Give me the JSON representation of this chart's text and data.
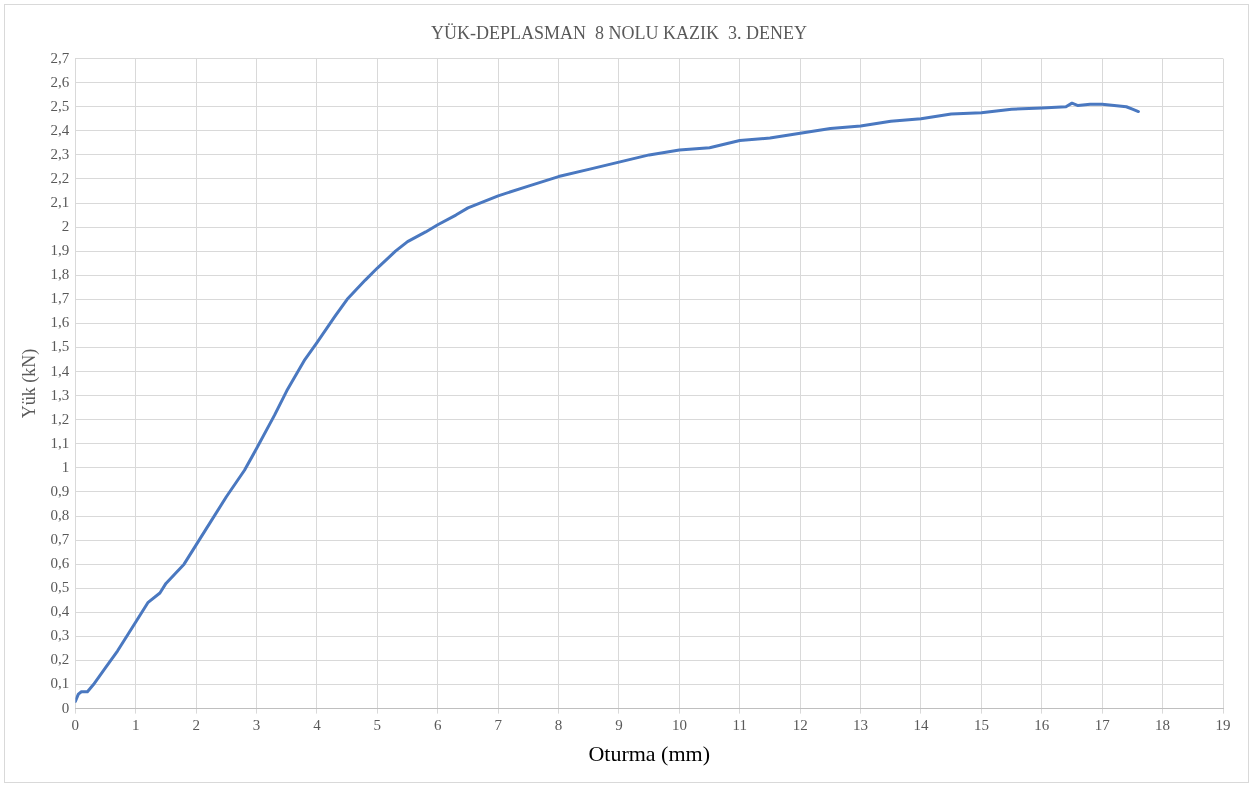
{
  "chart_data": {
    "type": "line",
    "title": "YÜK-DEPLASMAN  8 NOLU KAZIK  3. DENEY",
    "xlabel": "Oturma (mm)",
    "ylabel": "Yük (kN)",
    "series": [
      {
        "color": "#4a78c0",
        "x": [
          0,
          0.05,
          0.1,
          0.2,
          0.3,
          0.5,
          0.7,
          1,
          1.2,
          1.4,
          1.5,
          1.8,
          2,
          2.2,
          2.5,
          2.8,
          3,
          3.3,
          3.5,
          3.8,
          4,
          4.3,
          4.5,
          4.8,
          5,
          5.3,
          5.5,
          5.8,
          6,
          6.3,
          6.5,
          7,
          7.5,
          8,
          8.5,
          9,
          9.5,
          10,
          10.5,
          11,
          11.5,
          12,
          12.5,
          13,
          13.5,
          14,
          14.5,
          15,
          15.5,
          16,
          16.4,
          16.5,
          16.6,
          16.8,
          17,
          17.2,
          17.4,
          17.5,
          17.6
        ],
        "values": [
          0.03,
          0.06,
          0.07,
          0.07,
          0.1,
          0.17,
          0.24,
          0.36,
          0.44,
          0.48,
          0.52,
          0.6,
          0.68,
          0.76,
          0.88,
          0.99,
          1.08,
          1.22,
          1.32,
          1.45,
          1.52,
          1.63,
          1.7,
          1.78,
          1.83,
          1.9,
          1.94,
          1.98,
          2.01,
          2.05,
          2.08,
          2.13,
          2.17,
          2.21,
          2.24,
          2.27,
          2.3,
          2.32,
          2.33,
          2.36,
          2.37,
          2.39,
          2.41,
          2.42,
          2.44,
          2.45,
          2.47,
          2.475,
          2.49,
          2.495,
          2.5,
          2.515,
          2.505,
          2.51,
          2.51,
          2.505,
          2.5,
          2.49,
          2.48
        ]
      }
    ],
    "xlim": [
      0,
      19
    ],
    "xticks": [
      0,
      1,
      2,
      3,
      4,
      5,
      6,
      7,
      8,
      9,
      10,
      11,
      12,
      13,
      14,
      15,
      16,
      17,
      18,
      19
    ],
    "ylim": [
      0,
      2.7
    ],
    "yticks": [
      0,
      {
        "value": 0.1,
        "label": "0,1"
      },
      {
        "value": 0.2,
        "label": "0,2"
      },
      {
        "value": 0.3,
        "label": "0,3"
      },
      {
        "value": 0.4,
        "label": "0,4"
      },
      {
        "value": 0.5,
        "label": "0,5"
      },
      {
        "value": 0.6,
        "label": "0,6"
      },
      {
        "value": 0.7,
        "label": "0,7"
      },
      {
        "value": 0.8,
        "label": "0,8"
      },
      {
        "value": 0.9,
        "label": "0,9"
      },
      1,
      {
        "value": 1.1,
        "label": "1,1"
      },
      {
        "value": 1.2,
        "label": "1,2"
      },
      {
        "value": 1.3,
        "label": "1,3"
      },
      {
        "value": 1.4,
        "label": "1,4"
      },
      {
        "value": 1.5,
        "label": "1,5"
      },
      {
        "value": 1.6,
        "label": "1,6"
      },
      {
        "value": 1.7,
        "label": "1,7"
      },
      {
        "value": 1.8,
        "label": "1,8"
      },
      {
        "value": 1.9,
        "label": "1,9"
      },
      2,
      {
        "value": 2.1,
        "label": "2,1"
      },
      {
        "value": 2.2,
        "label": "2,2"
      },
      {
        "value": 2.3,
        "label": "2,3"
      },
      {
        "value": 2.4,
        "label": "2,4"
      },
      {
        "value": 2.5,
        "label": "2,5"
      },
      {
        "value": 2.6,
        "label": "2,6"
      },
      {
        "value": 2.7,
        "label": "2,7"
      }
    ],
    "grid": true,
    "legend": false,
    "marker": "none",
    "line_style": "solid"
  }
}
